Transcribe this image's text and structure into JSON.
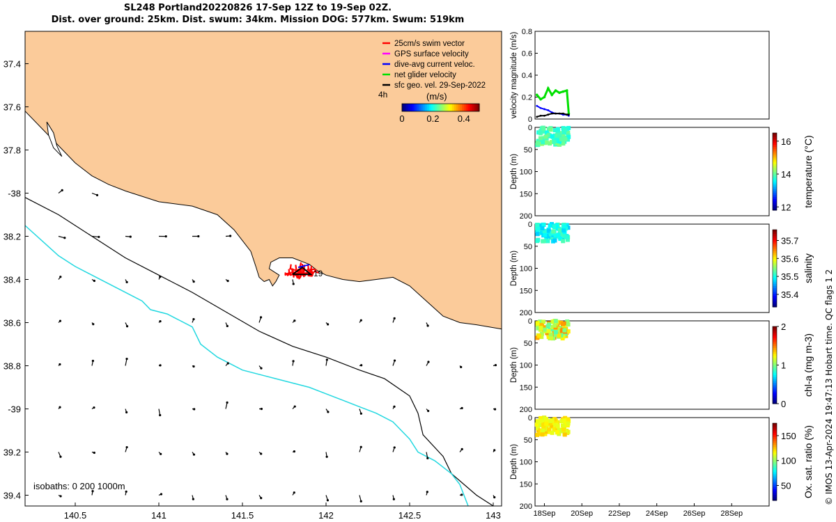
{
  "title_line1": "SL248 Portland20220826 17-Sep 12Z to 19-Sep 02Z.",
  "title_line2": "Dist. over ground: 25km. Dist. swum: 34km. Mission DOG: 577km. Swum: 519km",
  "credit": "© IMOS 13-Apr-2024 19:47:13 Hobart time. QC flags 1  2",
  "colors": {
    "land": "#fbcb9a",
    "coast": "#000000",
    "isobath_200": "#000000",
    "isobath_1000": "#22d8e0",
    "swim": "#ff0000",
    "gps": "#ff00ff",
    "dive_avg": "#0000ff",
    "net": "#00e000",
    "sfc_geo": "#000000"
  },
  "chart_data": [
    {
      "type": "map",
      "xlim": [
        140.2,
        143.05
      ],
      "ylim": [
        -39.45,
        -37.25
      ],
      "xticks": [
        140.5,
        141,
        141.5,
        142,
        142.5,
        143
      ],
      "xtick_labels": [
        "140.5",
        "141",
        "141.5",
        "142",
        "142.5",
        "143"
      ],
      "yticks": [
        -37.4,
        -37.6,
        -37.8,
        -38,
        -38.2,
        -38.4,
        -38.6,
        -38.8,
        -39,
        -39.2,
        -39.4
      ],
      "ytick_labels": [
        "37.4",
        "37.6",
        "37.8",
        "-38",
        "38.2",
        "38.4",
        "38.6",
        "38.8",
        "-39",
        "39.2",
        "39.4"
      ],
      "legend": [
        {
          "label": "25cm/s swim vector",
          "color": "#ff0000"
        },
        {
          "label": "GPS surface velocity",
          "color": "#ff00ff"
        },
        {
          "label": "dive-avg current veloc.",
          "color": "#0000ff"
        },
        {
          "label": "net glider velocity",
          "color": "#00e000"
        },
        {
          "label": "sfc geo. vel. 29-Sep-2022",
          "color": "#000000"
        }
      ],
      "legend_placement": "top-right",
      "time_step_label": "4h",
      "colorbar": {
        "label": "(m/s)",
        "range": [
          0,
          0.5
        ],
        "ticks": [
          0,
          0.2,
          0.4
        ],
        "tick_labels": [
          "0",
          "0.2",
          "0.4"
        ]
      },
      "isobaths_label": "isobaths: 0   200  1000m",
      "track_label": "19",
      "glider_position": [
        141.85,
        -38.37
      ],
      "coastline": [
        [
          140.2,
          -37.62
        ],
        [
          140.35,
          -37.74
        ],
        [
          140.5,
          -37.86
        ],
        [
          140.6,
          -37.92
        ],
        [
          140.7,
          -37.96
        ],
        [
          140.8,
          -37.99
        ],
        [
          141.0,
          -38.04
        ],
        [
          141.2,
          -38.06
        ],
        [
          141.35,
          -38.1
        ],
        [
          141.45,
          -38.17
        ],
        [
          141.5,
          -38.22
        ],
        [
          141.55,
          -38.27
        ],
        [
          141.58,
          -38.34
        ],
        [
          141.6,
          -38.39
        ],
        [
          141.63,
          -38.41
        ],
        [
          141.66,
          -38.4
        ],
        [
          141.68,
          -38.43
        ],
        [
          141.7,
          -38.41
        ],
        [
          141.72,
          -38.38
        ],
        [
          141.66,
          -38.35
        ],
        [
          141.67,
          -38.32
        ],
        [
          141.72,
          -38.3
        ],
        [
          141.8,
          -38.3
        ],
        [
          141.9,
          -38.33
        ],
        [
          141.95,
          -38.36
        ],
        [
          142.0,
          -38.38
        ],
        [
          142.1,
          -38.4
        ],
        [
          142.2,
          -38.41
        ],
        [
          142.3,
          -38.4
        ],
        [
          142.4,
          -38.39
        ],
        [
          142.5,
          -38.43
        ],
        [
          142.6,
          -38.5
        ],
        [
          142.7,
          -38.57
        ],
        [
          142.8,
          -38.6
        ],
        [
          142.9,
          -38.61
        ],
        [
          143.05,
          -38.63
        ]
      ],
      "isobath_200": [
        [
          140.2,
          -38.02
        ],
        [
          140.4,
          -38.1
        ],
        [
          140.6,
          -38.2
        ],
        [
          140.8,
          -38.3
        ],
        [
          141.0,
          -38.38
        ],
        [
          141.2,
          -38.46
        ],
        [
          141.4,
          -38.55
        ],
        [
          141.6,
          -38.64
        ],
        [
          141.8,
          -38.71
        ],
        [
          142.0,
          -38.76
        ],
        [
          142.2,
          -38.82
        ],
        [
          142.35,
          -38.86
        ],
        [
          142.5,
          -38.94
        ],
        [
          142.55,
          -39.02
        ],
        [
          142.58,
          -39.12
        ],
        [
          142.7,
          -39.22
        ],
        [
          142.75,
          -39.3
        ],
        [
          142.9,
          -39.4
        ],
        [
          143.0,
          -39.45
        ]
      ],
      "isobath_1000": [
        [
          140.2,
          -38.15
        ],
        [
          140.3,
          -38.22
        ],
        [
          140.4,
          -38.29
        ],
        [
          140.5,
          -38.34
        ],
        [
          140.6,
          -38.38
        ],
        [
          140.7,
          -38.42
        ],
        [
          140.8,
          -38.46
        ],
        [
          140.9,
          -38.5
        ],
        [
          140.95,
          -38.54
        ],
        [
          141.05,
          -38.56
        ],
        [
          141.1,
          -38.58
        ],
        [
          141.2,
          -38.62
        ],
        [
          141.25,
          -38.7
        ],
        [
          141.35,
          -38.76
        ],
        [
          141.5,
          -38.82
        ],
        [
          141.7,
          -38.86
        ],
        [
          141.9,
          -38.9
        ],
        [
          142.0,
          -38.93
        ],
        [
          142.1,
          -38.96
        ],
        [
          142.2,
          -38.99
        ],
        [
          142.3,
          -39.02
        ],
        [
          142.4,
          -39.06
        ],
        [
          142.45,
          -39.1
        ],
        [
          142.5,
          -39.14
        ],
        [
          142.55,
          -39.2
        ],
        [
          142.65,
          -39.24
        ],
        [
          142.75,
          -39.3
        ],
        [
          142.8,
          -39.35
        ],
        [
          142.85,
          -39.45
        ]
      ],
      "islands": [
        [
          [
            140.33,
            -37.67
          ],
          [
            140.37,
            -37.72
          ],
          [
            140.39,
            -37.78
          ],
          [
            140.42,
            -37.83
          ],
          [
            140.37,
            -37.79
          ],
          [
            140.34,
            -37.73
          ],
          [
            140.33,
            -37.67
          ]
        ]
      ],
      "current_vectors": {
        "lons": [
          140.4,
          140.6,
          140.8,
          141.0,
          141.2,
          141.4,
          141.6,
          141.8,
          142.0,
          142.2,
          142.4,
          142.6,
          142.8,
          143.0
        ],
        "lats": [
          -38.0,
          -38.2,
          -38.4,
          -38.6,
          -38.8,
          -39.0,
          -39.2,
          -39.4
        ],
        "u": 0.02,
        "v": 0.015
      }
    },
    {
      "type": "line",
      "ylabel": "velocity magnitude (m/s)",
      "ylim": [
        0,
        0.8
      ],
      "yticks": [
        0,
        0.2,
        0.4,
        0.6,
        0.8
      ],
      "xlim": [
        17.5,
        30.0
      ],
      "series": [
        {
          "color": "#00e000",
          "x": [
            17.6,
            17.8,
            18.0,
            18.2,
            18.4,
            18.6,
            18.8,
            19.0,
            19.2,
            19.3
          ],
          "y": [
            0.22,
            0.18,
            0.2,
            0.28,
            0.22,
            0.26,
            0.24,
            0.25,
            0.26,
            0.05
          ]
        },
        {
          "color": "#0000ff",
          "x": [
            17.6,
            17.8,
            18.0,
            18.2,
            18.4,
            18.6,
            18.8,
            19.0,
            19.2,
            19.3
          ],
          "y": [
            0.12,
            0.1,
            0.09,
            0.08,
            0.06,
            0.05,
            0.05,
            0.04,
            0.04,
            0.03
          ]
        },
        {
          "color": "#000000",
          "x": [
            17.6,
            17.8,
            18.0,
            18.2,
            18.4,
            18.6,
            18.8,
            19.0,
            19.2,
            19.3
          ],
          "y": [
            0.02,
            0.03,
            0.03,
            0.04,
            0.05,
            0.05,
            0.05,
            0.05,
            0.04,
            0.04
          ]
        }
      ]
    },
    {
      "type": "scatter",
      "ylabel": "Depth (m)",
      "clabel": "temperature (°C)",
      "ylim": [
        0,
        200
      ],
      "yticks": [
        0,
        50,
        100,
        150,
        200
      ],
      "clim": [
        11.8,
        16.5
      ],
      "cticks": [
        12,
        14,
        16
      ],
      "xrange": [
        17.6,
        19.3
      ],
      "depth_range": [
        0,
        40
      ],
      "value": 13.9,
      "spread": 0.3
    },
    {
      "type": "scatter",
      "ylabel": "Depth (m)",
      "clabel": "salinity",
      "ylim": [
        0,
        200
      ],
      "yticks": [
        0,
        50,
        100,
        150,
        200
      ],
      "clim": [
        35.33,
        35.76
      ],
      "cticks": [
        35.4,
        35.5,
        35.6,
        35.7
      ],
      "xrange": [
        17.6,
        19.3
      ],
      "depth_range": [
        0,
        40
      ],
      "value": 35.5,
      "spread": 0.03
    },
    {
      "type": "scatter",
      "ylabel": "Depth (m)",
      "clabel": "chl-a (mg m-3)",
      "ylim": [
        0,
        200
      ],
      "yticks": [
        0,
        50,
        100,
        150,
        200
      ],
      "clim": [
        0,
        2
      ],
      "cticks": [
        0,
        1,
        2
      ],
      "xrange": [
        17.6,
        19.3
      ],
      "depth_range": [
        0,
        40
      ],
      "value": 1.2,
      "spread": 0.3
    },
    {
      "type": "scatter",
      "ylabel": "Depth (m)",
      "clabel": "Ox. sat. ratio (%)",
      "ylim": [
        0,
        200
      ],
      "yticks": [
        0,
        50,
        100,
        150,
        200
      ],
      "clim": [
        20,
        175
      ],
      "cticks": [
        50,
        100,
        150
      ],
      "xrange": [
        17.6,
        19.3
      ],
      "depth_range": [
        0,
        40
      ],
      "value": 118,
      "spread": 8
    }
  ],
  "time_axis": {
    "xlim": [
      17.5,
      30.0
    ],
    "ticks": [
      18,
      20,
      22,
      24,
      26,
      28
    ],
    "tick_labels": [
      "18Sep",
      "20Sep",
      "22Sep",
      "24Sep",
      "26Sep",
      "28Sep"
    ]
  }
}
